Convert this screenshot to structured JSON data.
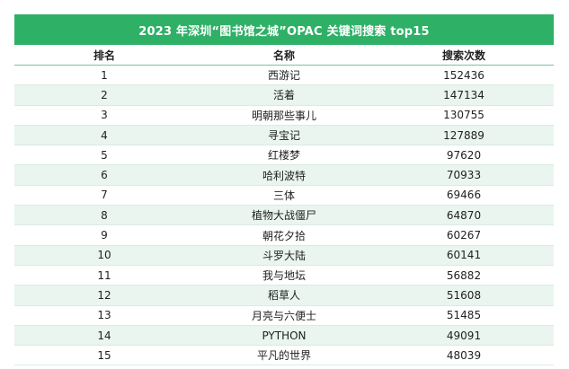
{
  "title": "2023 年深圳“图书馆之城”OPAC 关键词搜索 top15",
  "colors": {
    "header_green": "#2fb067",
    "stripe": "#e9f5ee"
  },
  "columns": [
    "排名",
    "名称",
    "搜索次数"
  ],
  "rows": [
    {
      "rank": "1",
      "name": "西游记",
      "count": "152436"
    },
    {
      "rank": "2",
      "name": "活着",
      "count": "147134"
    },
    {
      "rank": "3",
      "name": "明朝那些事儿",
      "count": "130755"
    },
    {
      "rank": "4",
      "name": "寻宝记",
      "count": "127889"
    },
    {
      "rank": "5",
      "name": "红楼梦",
      "count": "97620"
    },
    {
      "rank": "6",
      "name": "哈利波特",
      "count": "70933"
    },
    {
      "rank": "7",
      "name": "三体",
      "count": "69466"
    },
    {
      "rank": "8",
      "name": "植物大战僵尸",
      "count": "64870"
    },
    {
      "rank": "9",
      "name": "朝花夕拾",
      "count": "60267"
    },
    {
      "rank": "10",
      "name": "斗罗大陆",
      "count": "60141"
    },
    {
      "rank": "11",
      "name": "我与地坛",
      "count": "56882"
    },
    {
      "rank": "12",
      "name": "稻草人",
      "count": "51608"
    },
    {
      "rank": "13",
      "name": "月亮与六便士",
      "count": "51485"
    },
    {
      "rank": "14",
      "name": "PYTHON",
      "count": "49091"
    },
    {
      "rank": "15",
      "name": "平凡的世界",
      "count": "48039"
    }
  ]
}
